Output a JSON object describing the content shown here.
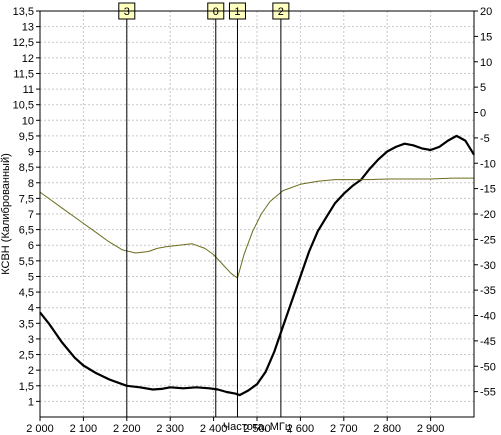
{
  "chart_data": {
    "type": "line",
    "xlabel": "Частота, МГц",
    "ylabel": "КСВН (Калиброванный)",
    "x_range": [
      2000,
      3000
    ],
    "y_left_range": [
      0.5,
      13.5
    ],
    "y_right_range": [
      -60,
      20
    ],
    "x_ticks": [
      {
        "value": 2000,
        "label": "2 000"
      },
      {
        "value": 2100,
        "label": "2 100"
      },
      {
        "value": 2200,
        "label": "2 200"
      },
      {
        "value": 2300,
        "label": "2 300"
      },
      {
        "value": 2400,
        "label": "2 400"
      },
      {
        "value": 2500,
        "label": "2 500"
      },
      {
        "value": 2600,
        "label": "2 600"
      },
      {
        "value": 2700,
        "label": "2 700"
      },
      {
        "value": 2800,
        "label": "2 800"
      },
      {
        "value": 2900,
        "label": "2 900"
      }
    ],
    "y_left_ticks": [
      {
        "value": 1,
        "label": "1"
      },
      {
        "value": 1.5,
        "label": "1,5"
      },
      {
        "value": 2,
        "label": "2"
      },
      {
        "value": 2.5,
        "label": "2,5"
      },
      {
        "value": 3,
        "label": "3"
      },
      {
        "value": 3.5,
        "label": "3,5"
      },
      {
        "value": 4,
        "label": "4"
      },
      {
        "value": 4.5,
        "label": "4,5"
      },
      {
        "value": 5,
        "label": "5"
      },
      {
        "value": 5.5,
        "label": "5,5"
      },
      {
        "value": 6,
        "label": "6"
      },
      {
        "value": 6.5,
        "label": "6,5"
      },
      {
        "value": 7,
        "label": "7"
      },
      {
        "value": 7.5,
        "label": "7,5"
      },
      {
        "value": 8,
        "label": "8"
      },
      {
        "value": 8.5,
        "label": "8,5"
      },
      {
        "value": 9,
        "label": "9"
      },
      {
        "value": 9.5,
        "label": "9,5"
      },
      {
        "value": 10,
        "label": "10"
      },
      {
        "value": 10.5,
        "label": "10,5"
      },
      {
        "value": 11,
        "label": "11"
      },
      {
        "value": 11.5,
        "label": "11,5"
      },
      {
        "value": 12,
        "label": "12"
      },
      {
        "value": 12.5,
        "label": "12,5"
      },
      {
        "value": 13,
        "label": "13"
      },
      {
        "value": 13.5,
        "label": "13,5"
      }
    ],
    "y_right_ticks": [
      {
        "value": 20,
        "label": "20"
      },
      {
        "value": 15,
        "label": "15"
      },
      {
        "value": 10,
        "label": "10"
      },
      {
        "value": 5,
        "label": "5"
      },
      {
        "value": 0,
        "label": "0"
      },
      {
        "value": -5,
        "label": "-5"
      },
      {
        "value": -10,
        "label": "-10"
      },
      {
        "value": -15,
        "label": "-15"
      },
      {
        "value": -20,
        "label": "-20"
      },
      {
        "value": -25,
        "label": "-25"
      },
      {
        "value": -30,
        "label": "-30"
      },
      {
        "value": -35,
        "label": "-35"
      },
      {
        "value": -40,
        "label": "-40"
      },
      {
        "value": -45,
        "label": "-45"
      },
      {
        "value": -50,
        "label": "-50"
      },
      {
        "value": -55,
        "label": "-55"
      }
    ],
    "grid": true,
    "markers": [
      {
        "label": "3",
        "x": 2200
      },
      {
        "label": "0",
        "x": 2405
      },
      {
        "label": "1",
        "x": 2455
      },
      {
        "label": "2",
        "x": 2555
      }
    ],
    "series": [
      {
        "axis": "left",
        "color": "#000000",
        "x": [
          2000,
          2020,
          2050,
          2080,
          2100,
          2130,
          2160,
          2200,
          2230,
          2260,
          2280,
          2300,
          2330,
          2360,
          2390,
          2410,
          2430,
          2450,
          2460,
          2480,
          2500,
          2520,
          2540,
          2560,
          2580,
          2600,
          2620,
          2640,
          2660,
          2680,
          2700,
          2720,
          2740,
          2760,
          2780,
          2800,
          2820,
          2840,
          2860,
          2880,
          2900,
          2920,
          2940,
          2960,
          2980,
          3000
        ],
        "y": [
          3.85,
          3.5,
          2.9,
          2.4,
          2.15,
          1.9,
          1.7,
          1.5,
          1.45,
          1.38,
          1.4,
          1.45,
          1.42,
          1.45,
          1.42,
          1.38,
          1.3,
          1.25,
          1.2,
          1.35,
          1.55,
          1.95,
          2.6,
          3.4,
          4.2,
          5.0,
          5.8,
          6.45,
          6.9,
          7.35,
          7.65,
          7.9,
          8.1,
          8.45,
          8.75,
          9.0,
          9.15,
          9.25,
          9.2,
          9.1,
          9.05,
          9.15,
          9.35,
          9.5,
          9.35,
          8.9
        ]
      },
      {
        "axis": "left",
        "color": "#6b6b1e",
        "x": [
          2000,
          2020,
          2050,
          2080,
          2100,
          2130,
          2160,
          2190,
          2220,
          2250,
          2270,
          2290,
          2320,
          2350,
          2380,
          2400,
          2420,
          2440,
          2450,
          2455,
          2470,
          2490,
          2510,
          2530,
          2560,
          2600,
          2640,
          2680,
          2720,
          2760,
          2800,
          2850,
          2900,
          2950,
          3000
        ],
        "y": [
          7.7,
          7.5,
          7.2,
          6.9,
          6.7,
          6.4,
          6.1,
          5.85,
          5.75,
          5.8,
          5.9,
          5.95,
          6.0,
          6.05,
          5.9,
          5.7,
          5.4,
          5.1,
          5.0,
          4.95,
          5.7,
          6.45,
          7.0,
          7.4,
          7.75,
          7.95,
          8.05,
          8.1,
          8.1,
          8.1,
          8.12,
          8.12,
          8.12,
          8.15,
          8.15
        ]
      }
    ]
  }
}
